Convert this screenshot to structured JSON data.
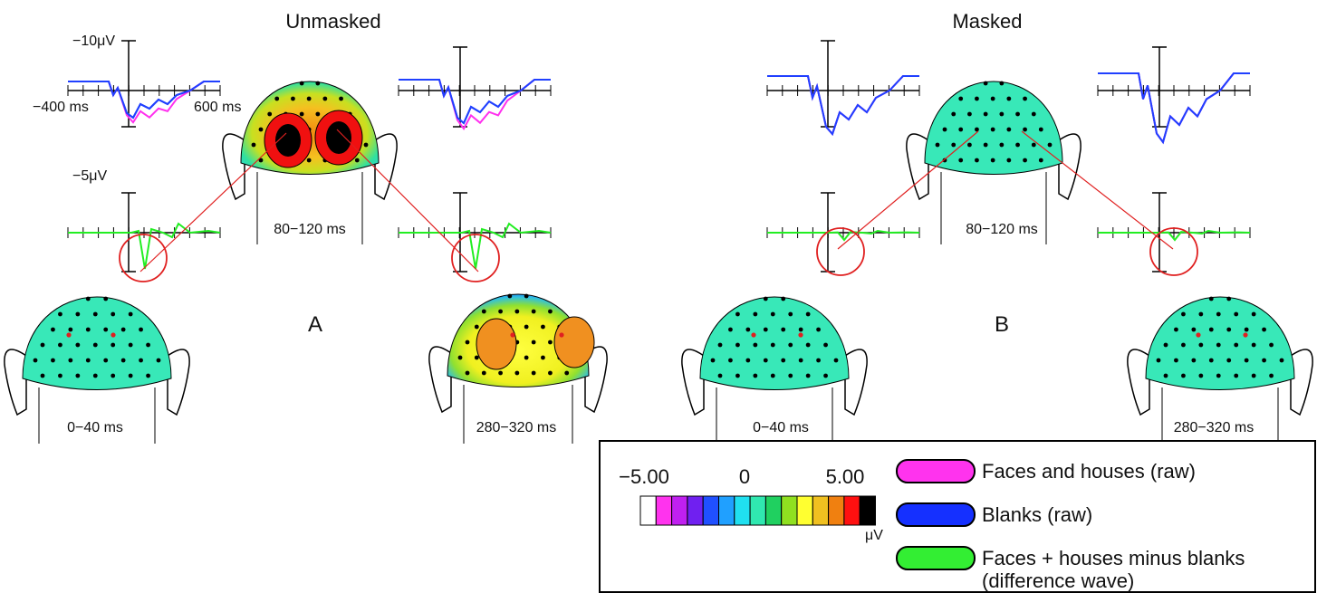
{
  "panels": [
    {
      "title": "Unmasked",
      "label": "A",
      "amplitude_top": "−10μV",
      "amplitude_mid": "−5μV",
      "time_start": "−400 ms",
      "time_end": "600 ms",
      "maps": [
        "80−120 ms",
        "0−40 ms",
        "280−320 ms"
      ]
    },
    {
      "title": "Masked",
      "label": "B",
      "maps": [
        "80−120 ms",
        "0−40 ms",
        "280−320 ms"
      ]
    }
  ],
  "legend": {
    "scale_labels": [
      "−5.00",
      "0",
      "5.00"
    ],
    "unit": "μV",
    "items": [
      {
        "lines": [
          "Faces and houses (raw)"
        ]
      },
      {
        "lines": [
          "Blanks (raw)"
        ]
      },
      {
        "lines": [
          "Faces + houses minus blanks",
          "(difference wave)"
        ]
      }
    ]
  }
}
